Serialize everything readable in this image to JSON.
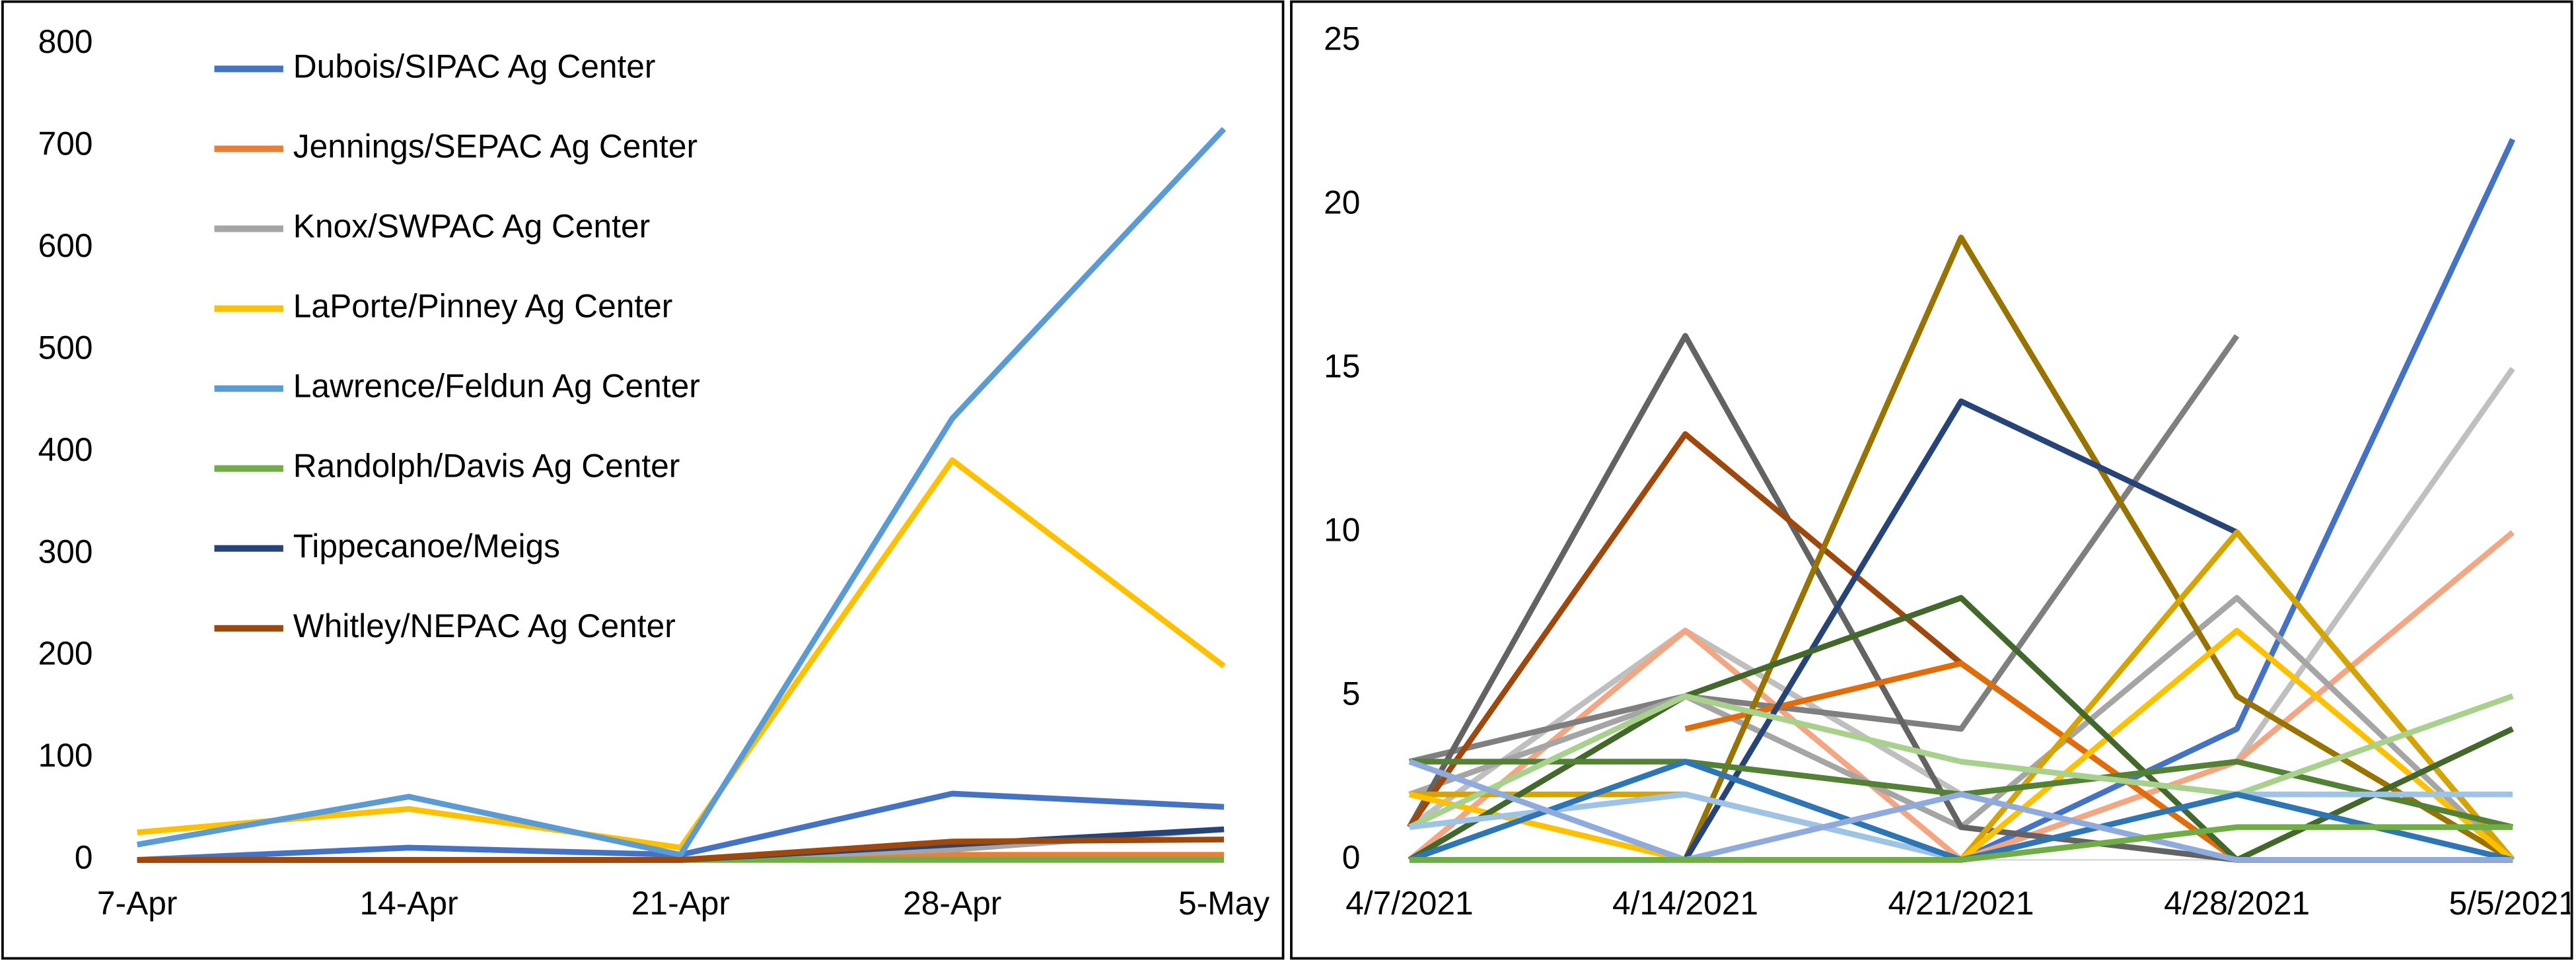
{
  "chart_data": [
    {
      "type": "line",
      "categories": [
        "7-Apr",
        "14-Apr",
        "21-Apr",
        "28-Apr",
        "5-May"
      ],
      "ylim": [
        0,
        800
      ],
      "yticks": [
        0,
        100,
        200,
        300,
        400,
        500,
        600,
        700,
        800
      ],
      "legend": "upper-left",
      "series": [
        {
          "name": "Dubois/SIPAC Ag Center",
          "color": "#4472c4",
          "values": [
            0,
            12,
            5,
            65,
            52
          ]
        },
        {
          "name": "Jennings/SEPAC Ag Center",
          "color": "#ed7d31",
          "values": [
            0,
            0,
            0,
            5,
            5
          ]
        },
        {
          "name": "Knox/SWPAC Ag Center",
          "color": "#a5a5a5",
          "values": [
            0,
            0,
            0,
            10,
            30
          ]
        },
        {
          "name": "LaPorte/Pinney Ag Center",
          "color": "#ffc000",
          "values": [
            27,
            50,
            12,
            392,
            190
          ]
        },
        {
          "name": "Lawrence/Feldun Ag Center",
          "color": "#5b9bd5",
          "values": [
            15,
            62,
            5,
            433,
            717
          ]
        },
        {
          "name": "Randolph/Davis Ag Center",
          "color": "#70ad47",
          "values": [
            0,
            0,
            0,
            0,
            0
          ]
        },
        {
          "name": "Tippecanoe/Meigs",
          "color": "#264478",
          "values": [
            0,
            0,
            0,
            15,
            30
          ]
        },
        {
          "name": "Whitley/NEPAC Ag Center",
          "color": "#9e480e",
          "values": [
            0,
            0,
            0,
            18,
            20
          ]
        }
      ]
    },
    {
      "type": "line",
      "categories": [
        "4/7/2021",
        "4/14/2021",
        "4/21/2021",
        "4/28/2021",
        "5/5/2021"
      ],
      "ylim": [
        0,
        25
      ],
      "yticks": [
        0,
        5,
        10,
        15,
        20,
        25
      ],
      "series": [
        {
          "color": "#4472c4",
          "values": [
            0,
            0,
            0,
            4,
            22
          ]
        },
        {
          "color": "#bfbfbf",
          "values": [
            1,
            7,
            2,
            3,
            15
          ]
        },
        {
          "color": "#f4a582",
          "values": [
            0,
            7,
            0,
            3,
            10
          ]
        },
        {
          "color": "#7f7f7f",
          "values": [
            3,
            5,
            4,
            16,
            null
          ]
        },
        {
          "color": "#a5a5a5",
          "values": [
            2,
            5,
            1,
            8,
            0
          ]
        },
        {
          "color": "#636363",
          "values": [
            1,
            16,
            1,
            0,
            0
          ]
        },
        {
          "color": "#9e480e",
          "values": [
            1,
            13,
            6,
            0,
            0
          ]
        },
        {
          "color": "#e36c0a",
          "values": [
            null,
            4,
            6,
            0,
            0
          ]
        },
        {
          "color": "#997300",
          "values": [
            null,
            0,
            19,
            5,
            0
          ]
        },
        {
          "color": "#264478",
          "values": [
            null,
            0,
            14,
            10,
            0
          ]
        },
        {
          "color": "#d6a400",
          "values": [
            2,
            2,
            0,
            10,
            0
          ]
        },
        {
          "color": "#ffc000",
          "values": [
            2,
            0,
            0,
            7,
            0
          ]
        },
        {
          "color": "#43682b",
          "values": [
            0,
            5,
            8,
            0,
            4
          ]
        },
        {
          "color": "#548235",
          "values": [
            3,
            3,
            2,
            3,
            1
          ]
        },
        {
          "color": "#a9d18e",
          "values": [
            1,
            5,
            3,
            2,
            5
          ]
        },
        {
          "color": "#9dc3e6",
          "values": [
            1,
            2,
            0,
            2,
            2
          ]
        },
        {
          "color": "#2e75b6",
          "values": [
            0,
            3,
            0,
            2,
            0
          ]
        },
        {
          "color": "#8faadc",
          "values": [
            3,
            0,
            2,
            0,
            0
          ]
        },
        {
          "color": "#70ad47",
          "values": [
            0,
            0,
            0,
            1,
            1
          ]
        }
      ]
    }
  ]
}
